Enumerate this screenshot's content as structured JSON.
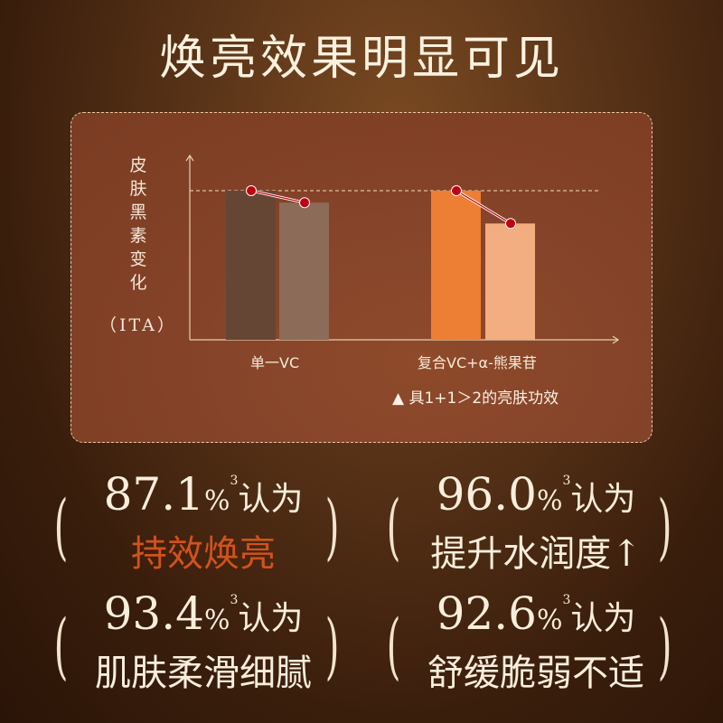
{
  "title": "焕亮效果明显可见",
  "chart_data": {
    "type": "bar",
    "title": "",
    "ylabel": "皮肤黑素变化",
    "yunit": "（ITA）",
    "categories": [
      "单一VC",
      "复合VC+α-熊果苷"
    ],
    "series": [
      {
        "values": [
          100,
          100
        ],
        "colors": [
          "#654634",
          "#ec7f33"
        ]
      },
      {
        "values": [
          92,
          78
        ],
        "colors": [
          "#8c6c58",
          "#f2ad80"
        ]
      }
    ],
    "value_note": "relative to dashed reference line = 100",
    "reference_line": 100,
    "grid": false,
    "marker_color": "#c00010",
    "annotation": "▲ 具1+1＞2的亮肤功效"
  },
  "stats": [
    {
      "value": "87.1",
      "unit": "%",
      "sup": "3",
      "suffix": "认为",
      "desc": "持效焕亮",
      "highlight": true
    },
    {
      "value": "96.0",
      "unit": "%",
      "sup": "3",
      "suffix": "认为",
      "desc": "提升水润度↑",
      "highlight": false
    },
    {
      "value": "93.4",
      "unit": "%",
      "sup": "3",
      "suffix": "认为",
      "desc": "肌肤柔滑细腻",
      "highlight": false
    },
    {
      "value": "92.6",
      "unit": "%",
      "sup": "3",
      "suffix": "认为",
      "desc": "舒缓脆弱不适",
      "highlight": false
    }
  ],
  "colors": {
    "highlight": "#d2521c",
    "text": "#f8eedb"
  },
  "paren_open": "(",
  "paren_close": ")"
}
